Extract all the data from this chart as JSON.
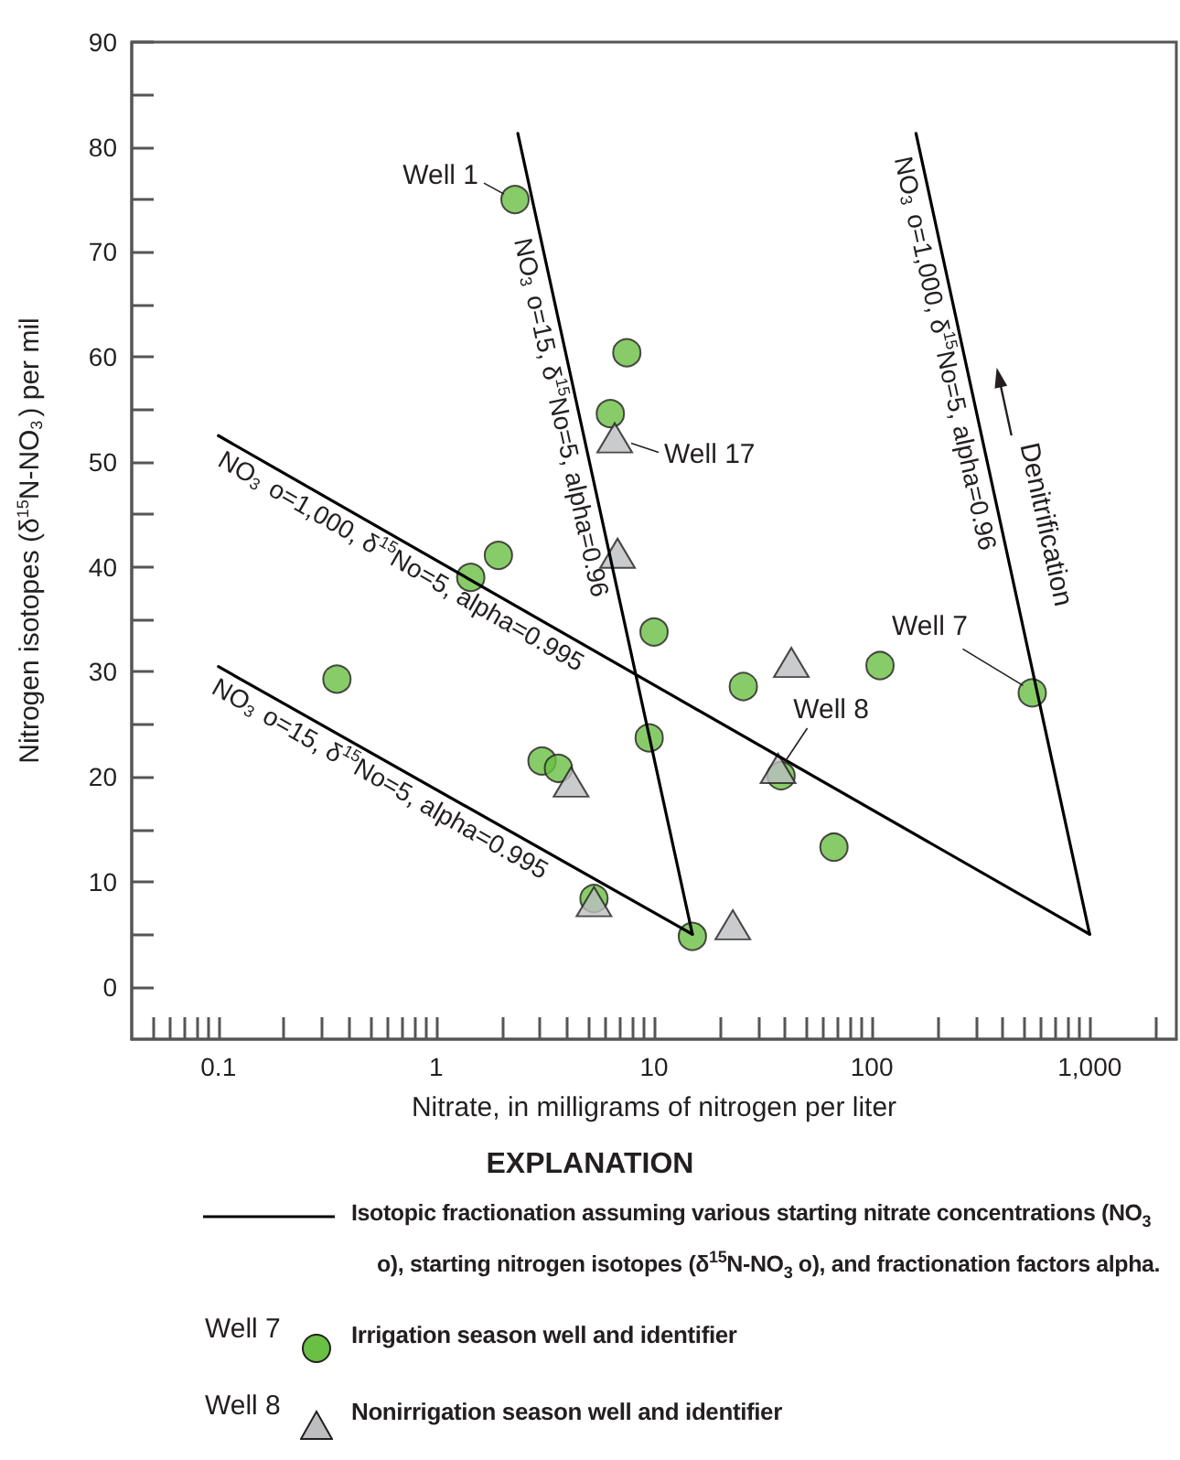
{
  "chart_data": {
    "type": "scatter",
    "xlabel": "Nitrate, in milligrams of nitrogen per liter",
    "ylabel": "Nitrogen isotopes (δ$^{15}$N-NO$_{3}$) per mil",
    "legend_title": "EXPLANATION",
    "legend": "bottom",
    "log": "x",
    "grid": false,
    "xlim": [
      0.04,
      2500
    ],
    "ylim": [
      -5,
      90
    ],
    "xticks": [
      {
        "value": 0.05,
        "label": null
      },
      {
        "value": 0.06,
        "label": null
      },
      {
        "value": 0.07,
        "label": null
      },
      {
        "value": 0.08,
        "label": null
      },
      {
        "value": 0.09,
        "label": null
      },
      0.1,
      {
        "value": 0.2,
        "label": null
      },
      {
        "value": 0.3,
        "label": null
      },
      {
        "value": 0.4,
        "label": null
      },
      {
        "value": 0.5,
        "label": null
      },
      {
        "value": 0.6,
        "label": null
      },
      {
        "value": 0.7,
        "label": null
      },
      {
        "value": 0.8,
        "label": null
      },
      {
        "value": 0.9,
        "label": null
      },
      1,
      {
        "value": 2,
        "label": null
      },
      {
        "value": 3,
        "label": null
      },
      {
        "value": 4,
        "label": null
      },
      {
        "value": 5,
        "label": null
      },
      {
        "value": 6,
        "label": null
      },
      {
        "value": 7,
        "label": null
      },
      {
        "value": 8,
        "label": null
      },
      {
        "value": 9,
        "label": null
      },
      10,
      {
        "value": 20,
        "label": null
      },
      {
        "value": 30,
        "label": null
      },
      {
        "value": 40,
        "label": null
      },
      {
        "value": 50,
        "label": null
      },
      {
        "value": 60,
        "label": null
      },
      {
        "value": 70,
        "label": null
      },
      {
        "value": 80,
        "label": null
      },
      {
        "value": 90,
        "label": null
      },
      100,
      {
        "value": 200,
        "label": null
      },
      {
        "value": 300,
        "label": null
      },
      {
        "value": 400,
        "label": null
      },
      {
        "value": 500,
        "label": null
      },
      {
        "value": 600,
        "label": null
      },
      {
        "value": 700,
        "label": null
      },
      {
        "value": 800,
        "label": null
      },
      {
        "value": 900,
        "label": null
      },
      {
        "value": 1000,
        "label": "1,000"
      },
      {
        "value": 2000,
        "label": null
      }
    ],
    "yticks": [
      0,
      {
        "value": 5,
        "label": null
      },
      10,
      {
        "value": 15,
        "label": null
      },
      20,
      {
        "value": 25,
        "label": null
      },
      30,
      {
        "value": 35,
        "label": null
      },
      40,
      {
        "value": 45,
        "label": null
      },
      50,
      {
        "value": 55,
        "label": null
      },
      60,
      {
        "value": 65,
        "label": null
      },
      70,
      {
        "value": 75,
        "label": null
      },
      80,
      {
        "value": 85,
        "label": null
      },
      90
    ],
    "series": [
      {
        "name": "Irrigation season well and identifier",
        "marker": "circle",
        "color": "#6abf45",
        "x": [
          2.3,
          7.5,
          6.3,
          1.93,
          1.44,
          0.35,
          3.06,
          3.64,
          5.3,
          10,
          9.5,
          15,
          25.7,
          38.3,
          67,
          109,
          545
        ],
        "values": [
          75.0,
          60.4,
          54.6,
          41.1,
          39.0,
          29.3,
          21.5,
          20.8,
          8.4,
          33.8,
          23.7,
          4.8,
          28.6,
          20.1,
          13.3,
          30.6,
          28.0
        ]
      },
      {
        "name": "Nonirrigation season well and identifier",
        "marker": "triangle",
        "color": "#bcbec0",
        "x": [
          6.6,
          6.8,
          4.16,
          5.3,
          23,
          42.7,
          37.1
        ],
        "values": [
          52.3,
          41.3,
          19.5,
          8.1,
          5.9,
          30.9,
          20.8
        ]
      },
      {
        "name": "NO$_{3}$ o=15, δ$^{15}$No=5, alpha=0.995",
        "type": "line",
        "marker": "none",
        "line_style": "solid",
        "color": "#000000",
        "x": [
          0.1,
          15
        ],
        "values": [
          30.5,
          5
        ]
      },
      {
        "name": "NO$_{3}$ o=1,000, δ$^{15}$No=5, alpha=0.995",
        "type": "line",
        "marker": "none",
        "line_style": "solid",
        "color": "#000000",
        "x": [
          0.1,
          1000
        ],
        "values": [
          52.5,
          5
        ]
      },
      {
        "name": "NO$_{3}$ o=15, δ$^{15}$No=5, alpha=0.96",
        "type": "line",
        "marker": "none",
        "line_style": "solid",
        "color": "#000000",
        "x": [
          2.37,
          15
        ],
        "values": [
          81.3,
          5
        ]
      },
      {
        "name": "NO$_{3}$ o=1,000, δ$^{15}$No=5, alpha=0.96",
        "type": "line",
        "marker": "none",
        "line_style": "solid",
        "color": "#000000",
        "x": [
          159.5,
          1000
        ],
        "values": [
          81.3,
          5
        ]
      }
    ],
    "annotations": [
      {
        "text": "Well 1",
        "x": 2.3,
        "y": 75.0
      },
      {
        "text": "Well 17",
        "x": 6.6,
        "y": 52.3
      },
      {
        "text": "Well 8",
        "x": 37.1,
        "y": 20.8
      },
      {
        "text": "Well 7",
        "x": 545,
        "y": 28.0
      },
      "Denitrification",
      "Isotopic fractionation assuming various starting nitrate concentrations (NO$_{3}$ o), starting nitrogen isotopes (δ$^{15}$N-NO$_{3}$ o), and fractionation factors alpha.",
      "Well 7",
      "Well 8"
    ]
  }
}
